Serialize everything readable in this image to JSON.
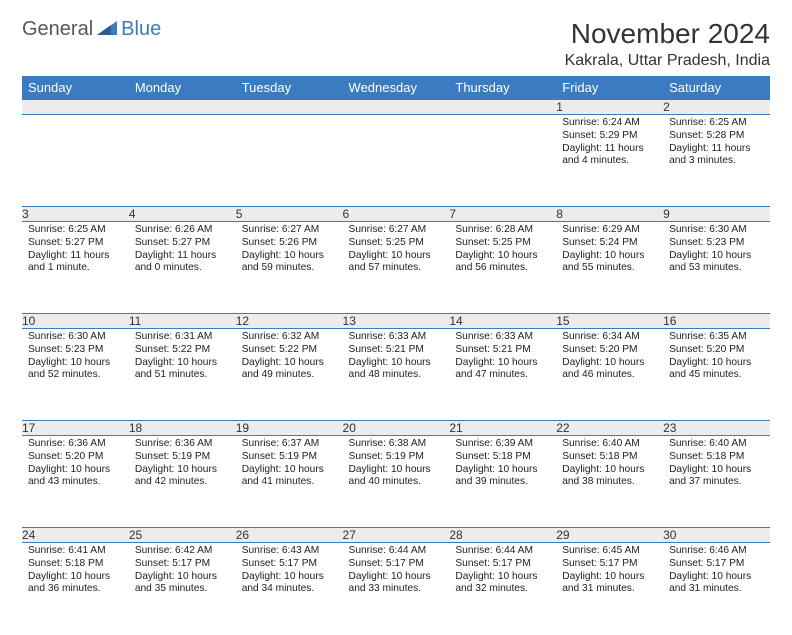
{
  "logo": {
    "part1": "General",
    "part2": "Blue"
  },
  "title": "November 2024",
  "location": "Kakrala, Uttar Pradesh, India",
  "colors": {
    "header_bg": "#3b7bbf",
    "header_fg": "#ffffff",
    "daynum_bg": "#ececec",
    "grid_line": "#3b7bbf",
    "body_text": "#222222",
    "title_text": "#333333",
    "logo_gray": "#585858",
    "logo_blue": "#3b7bbf",
    "page_bg": "#ffffff"
  },
  "typography": {
    "title_fontsize": 28,
    "location_fontsize": 16,
    "header_fontsize": 13,
    "daynum_fontsize": 12,
    "cell_fontsize": 10.2
  },
  "weekdays": [
    "Sunday",
    "Monday",
    "Tuesday",
    "Wednesday",
    "Thursday",
    "Friday",
    "Saturday"
  ],
  "weeks": [
    [
      null,
      null,
      null,
      null,
      null,
      {
        "n": "1",
        "sr": "Sunrise: 6:24 AM",
        "ss": "Sunset: 5:29 PM",
        "dl": "Daylight: 11 hours and 4 minutes."
      },
      {
        "n": "2",
        "sr": "Sunrise: 6:25 AM",
        "ss": "Sunset: 5:28 PM",
        "dl": "Daylight: 11 hours and 3 minutes."
      }
    ],
    [
      {
        "n": "3",
        "sr": "Sunrise: 6:25 AM",
        "ss": "Sunset: 5:27 PM",
        "dl": "Daylight: 11 hours and 1 minute."
      },
      {
        "n": "4",
        "sr": "Sunrise: 6:26 AM",
        "ss": "Sunset: 5:27 PM",
        "dl": "Daylight: 11 hours and 0 minutes."
      },
      {
        "n": "5",
        "sr": "Sunrise: 6:27 AM",
        "ss": "Sunset: 5:26 PM",
        "dl": "Daylight: 10 hours and 59 minutes."
      },
      {
        "n": "6",
        "sr": "Sunrise: 6:27 AM",
        "ss": "Sunset: 5:25 PM",
        "dl": "Daylight: 10 hours and 57 minutes."
      },
      {
        "n": "7",
        "sr": "Sunrise: 6:28 AM",
        "ss": "Sunset: 5:25 PM",
        "dl": "Daylight: 10 hours and 56 minutes."
      },
      {
        "n": "8",
        "sr": "Sunrise: 6:29 AM",
        "ss": "Sunset: 5:24 PM",
        "dl": "Daylight: 10 hours and 55 minutes."
      },
      {
        "n": "9",
        "sr": "Sunrise: 6:30 AM",
        "ss": "Sunset: 5:23 PM",
        "dl": "Daylight: 10 hours and 53 minutes."
      }
    ],
    [
      {
        "n": "10",
        "sr": "Sunrise: 6:30 AM",
        "ss": "Sunset: 5:23 PM",
        "dl": "Daylight: 10 hours and 52 minutes."
      },
      {
        "n": "11",
        "sr": "Sunrise: 6:31 AM",
        "ss": "Sunset: 5:22 PM",
        "dl": "Daylight: 10 hours and 51 minutes."
      },
      {
        "n": "12",
        "sr": "Sunrise: 6:32 AM",
        "ss": "Sunset: 5:22 PM",
        "dl": "Daylight: 10 hours and 49 minutes."
      },
      {
        "n": "13",
        "sr": "Sunrise: 6:33 AM",
        "ss": "Sunset: 5:21 PM",
        "dl": "Daylight: 10 hours and 48 minutes."
      },
      {
        "n": "14",
        "sr": "Sunrise: 6:33 AM",
        "ss": "Sunset: 5:21 PM",
        "dl": "Daylight: 10 hours and 47 minutes."
      },
      {
        "n": "15",
        "sr": "Sunrise: 6:34 AM",
        "ss": "Sunset: 5:20 PM",
        "dl": "Daylight: 10 hours and 46 minutes."
      },
      {
        "n": "16",
        "sr": "Sunrise: 6:35 AM",
        "ss": "Sunset: 5:20 PM",
        "dl": "Daylight: 10 hours and 45 minutes."
      }
    ],
    [
      {
        "n": "17",
        "sr": "Sunrise: 6:36 AM",
        "ss": "Sunset: 5:20 PM",
        "dl": "Daylight: 10 hours and 43 minutes."
      },
      {
        "n": "18",
        "sr": "Sunrise: 6:36 AM",
        "ss": "Sunset: 5:19 PM",
        "dl": "Daylight: 10 hours and 42 minutes."
      },
      {
        "n": "19",
        "sr": "Sunrise: 6:37 AM",
        "ss": "Sunset: 5:19 PM",
        "dl": "Daylight: 10 hours and 41 minutes."
      },
      {
        "n": "20",
        "sr": "Sunrise: 6:38 AM",
        "ss": "Sunset: 5:19 PM",
        "dl": "Daylight: 10 hours and 40 minutes."
      },
      {
        "n": "21",
        "sr": "Sunrise: 6:39 AM",
        "ss": "Sunset: 5:18 PM",
        "dl": "Daylight: 10 hours and 39 minutes."
      },
      {
        "n": "22",
        "sr": "Sunrise: 6:40 AM",
        "ss": "Sunset: 5:18 PM",
        "dl": "Daylight: 10 hours and 38 minutes."
      },
      {
        "n": "23",
        "sr": "Sunrise: 6:40 AM",
        "ss": "Sunset: 5:18 PM",
        "dl": "Daylight: 10 hours and 37 minutes."
      }
    ],
    [
      {
        "n": "24",
        "sr": "Sunrise: 6:41 AM",
        "ss": "Sunset: 5:18 PM",
        "dl": "Daylight: 10 hours and 36 minutes."
      },
      {
        "n": "25",
        "sr": "Sunrise: 6:42 AM",
        "ss": "Sunset: 5:17 PM",
        "dl": "Daylight: 10 hours and 35 minutes."
      },
      {
        "n": "26",
        "sr": "Sunrise: 6:43 AM",
        "ss": "Sunset: 5:17 PM",
        "dl": "Daylight: 10 hours and 34 minutes."
      },
      {
        "n": "27",
        "sr": "Sunrise: 6:44 AM",
        "ss": "Sunset: 5:17 PM",
        "dl": "Daylight: 10 hours and 33 minutes."
      },
      {
        "n": "28",
        "sr": "Sunrise: 6:44 AM",
        "ss": "Sunset: 5:17 PM",
        "dl": "Daylight: 10 hours and 32 minutes."
      },
      {
        "n": "29",
        "sr": "Sunrise: 6:45 AM",
        "ss": "Sunset: 5:17 PM",
        "dl": "Daylight: 10 hours and 31 minutes."
      },
      {
        "n": "30",
        "sr": "Sunrise: 6:46 AM",
        "ss": "Sunset: 5:17 PM",
        "dl": "Daylight: 10 hours and 31 minutes."
      }
    ]
  ]
}
